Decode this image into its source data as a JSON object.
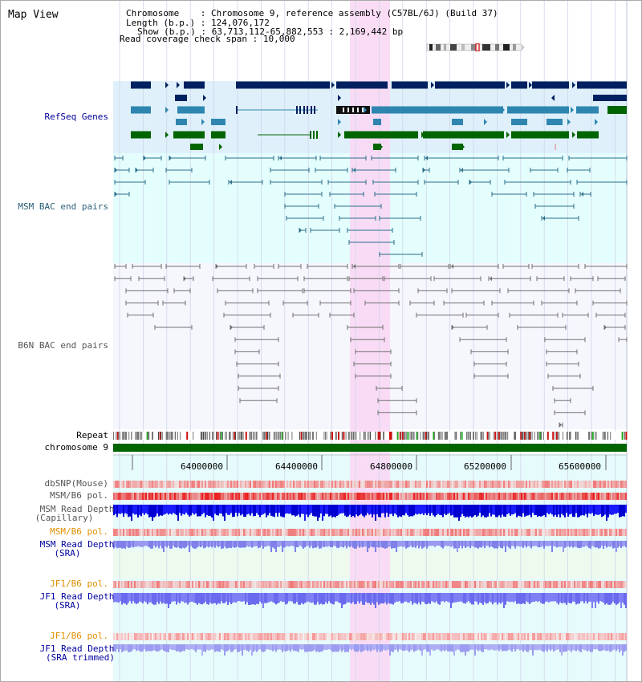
{
  "header": {
    "title": "Map View",
    "chromosome_label": "Chromosome",
    "chromosome_value": "Chromosome 9, reference assembly (C57BL/6J) (Build 37)",
    "length_label": "Length (b.p.)",
    "length_value": "124,076,172",
    "show_label": "Show (b.p.)",
    "show_value": "63,713,112-65,882,553 : 2,169,442 bp",
    "coverage_label": "Read coverage check span",
    "coverage_value": "10,000"
  },
  "tracks": {
    "refseq_genes": "RefSeq Genes",
    "msm_bac": "MSM BAC end pairs",
    "b6n_bac": "B6N BAC end pairs",
    "repeat": "Repeat",
    "chromosome": "chromosome 9",
    "dbsnp": "dbSNP(Mouse)",
    "msm_b6_pol_1": "MSM/B6 pol.",
    "msm_read_depth_cap_1": "MSM Read Depth",
    "msm_read_depth_cap_2": "(Capillary)",
    "msm_b6_pol_2": "MSM/B6 pol.",
    "msm_read_depth_sra_1": "MSM Read Depth",
    "msm_read_depth_sra_2": "(SRA)",
    "jf1_b6_pol_1": "JF1/B6 pol.",
    "jf1_read_depth_sra_1": "JF1 Read Depth",
    "jf1_read_depth_sra_2": "(SRA)",
    "jf1_b6_pol_2": "JF1/B6 pol.",
    "jf1_read_depth_trim_1": "JF1 Read Depth",
    "jf1_read_depth_trim_2": "(SRA trimmed)"
  },
  "axis": {
    "ticks": [
      "64000000",
      "64400000",
      "64800000",
      "65200000",
      "65600000"
    ]
  },
  "colors": {
    "navy": "#002060",
    "teal_blue": "#2e86b0",
    "green": "#006400",
    "highlight": "#f9d8f4",
    "refseq_bg": "#dff0fb",
    "msm_bg": "#e4fdfd",
    "b6n_bg": "#f6f6fd",
    "bac_line_msm": "#2a6e8c",
    "bac_line_b6n": "#707070",
    "orange": "#e09000",
    "dark_blue_text": "#0000a0"
  }
}
